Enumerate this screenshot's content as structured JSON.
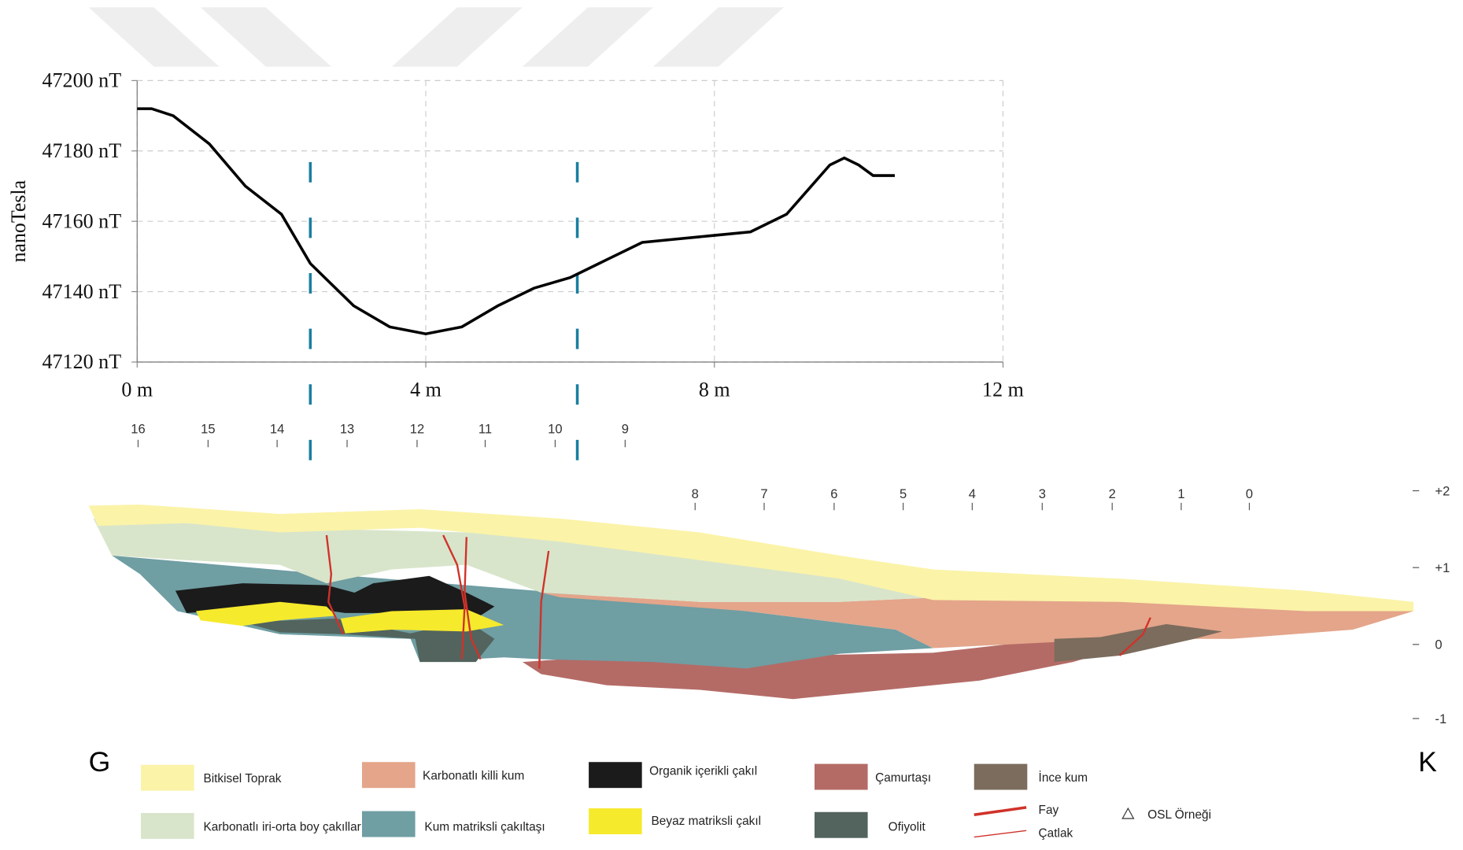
{
  "chart_data": {
    "type": "line",
    "y_label": "nanoTesla",
    "x": [
      0,
      0.2,
      0.5,
      1.0,
      1.5,
      2.0,
      2.4,
      2.6,
      3.0,
      3.5,
      4.0,
      4.5,
      5.0,
      5.5,
      6.0,
      6.5,
      7.0,
      7.5,
      8.0,
      8.5,
      9.0,
      9.3,
      9.6,
      9.8,
      10.0,
      10.2,
      10.5
    ],
    "series": [
      {
        "color": "#000000",
        "values": [
          47192,
          47192,
          47190,
          47182,
          47170,
          47162,
          47148,
          47144,
          47136,
          47130,
          47128,
          47130,
          47136,
          47141,
          47144,
          47149,
          47154,
          47155,
          47156,
          47157,
          47162,
          47169,
          47176,
          47178,
          47176,
          47173,
          47173
        ]
      }
    ],
    "vlines": [
      2.4,
      6.1
    ],
    "vline_color": "#1a7fa0",
    "xlim": [
      0,
      12
    ],
    "xticks": [
      {
        "value": 0,
        "label": "0 m"
      },
      {
        "value": 4,
        "label": "4 m"
      },
      {
        "value": 8,
        "label": "8 m"
      },
      {
        "value": 12,
        "label": "12 m"
      }
    ],
    "ylim": [
      47120,
      47200
    ],
    "yticks": [
      {
        "value": 47120,
        "label": "47120 nT"
      },
      {
        "value": 47140,
        "label": "47140 nT"
      },
      {
        "value": 47160,
        "label": "47160 nT"
      },
      {
        "value": 47180,
        "label": "47180 nT"
      },
      {
        "value": 47200,
        "label": "47200 nT"
      }
    ],
    "grid": true
  },
  "cross_section": {
    "stations_upper": [
      "16",
      "15",
      "14",
      "13",
      "12",
      "11",
      "10",
      "9"
    ],
    "stations_lower": [
      "8",
      "7",
      "6",
      "5",
      "4",
      "3",
      "2",
      "1",
      "0"
    ],
    "elevations": [
      "+2",
      "+1",
      "0",
      "-1"
    ],
    "left_label": "G",
    "right_label": "K",
    "legend": [
      {
        "label": "Bitkisel Toprak",
        "color": "#fbf3a8",
        "kind": "box"
      },
      {
        "label": "Karbonatlı killi kum",
        "color": "#e4a58a",
        "kind": "box"
      },
      {
        "label": "Organik içerikli çakıl",
        "color": "#1b1b1b",
        "kind": "box"
      },
      {
        "label": "Çamurtaşı",
        "color": "#b46b66",
        "kind": "box"
      },
      {
        "label": "İnce kum",
        "color": "#7b6c5d",
        "kind": "box"
      },
      {
        "label": "Karbonatlı iri-orta boy çakıllar",
        "color": "#d8e5cb",
        "kind": "box"
      },
      {
        "label": "Kum matriksli çakıltaşı",
        "color": "#6f9ea3",
        "kind": "box"
      },
      {
        "label": "Beyaz matriksli çakıl",
        "color": "#f6ea2c",
        "kind": "box"
      },
      {
        "label": "Ofiyolit",
        "color": "#52645d",
        "kind": "box"
      },
      {
        "label": "Fay",
        "color": "#d0322a",
        "kind": "fault"
      },
      {
        "label": "Çatlak",
        "color": "#d0322a",
        "kind": "crack"
      },
      {
        "label": "OSL Örneği",
        "color": "#333333",
        "kind": "triangle"
      }
    ]
  }
}
